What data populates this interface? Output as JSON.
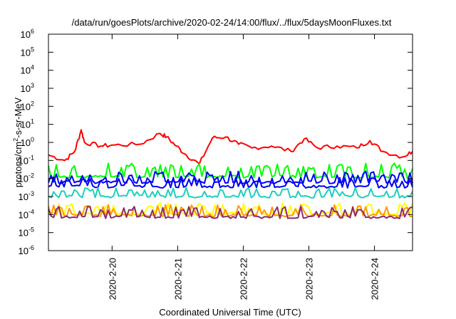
{
  "chart_data": {
    "type": "line",
    "title": "/data/run/goesPlots/archive/2020-02-24/14:00/flux/../flux/5daysMoonFluxes.txt",
    "xlabel": "Coordinated Universal Time (UTC)",
    "ylabel_parts": {
      "a": "protons/cm",
      "sup": "2",
      "b": "-s-sr-MeV"
    },
    "y_scale": "log",
    "ylim": [
      -6,
      6
    ],
    "y_ticks": [
      {
        "exp": -6,
        "base": "10",
        "sup": "-6"
      },
      {
        "exp": -5,
        "base": "10",
        "sup": "-5"
      },
      {
        "exp": -4,
        "base": "10",
        "sup": "-4"
      },
      {
        "exp": -3,
        "base": "10",
        "sup": "-3"
      },
      {
        "exp": -2,
        "base": "10",
        "sup": "-2"
      },
      {
        "exp": -1,
        "base": "10",
        "sup": "-1"
      },
      {
        "exp": 0,
        "base": "10",
        "sup": "0"
      },
      {
        "exp": 1,
        "base": "10",
        "sup": "1"
      },
      {
        "exp": 2,
        "base": "10",
        "sup": "2"
      },
      {
        "exp": 3,
        "base": "10",
        "sup": "3"
      },
      {
        "exp": 4,
        "base": "10",
        "sup": "4"
      },
      {
        "exp": 5,
        "base": "10",
        "sup": "5"
      },
      {
        "exp": 6,
        "base": "10",
        "sup": "6"
      }
    ],
    "x_range_days": [
      "2020-02-19 00:30",
      "2020-02-24 14:00"
    ],
    "x_ticks": [
      "2020-2-20",
      "2020-2-21",
      "2020-2-22",
      "2020-2-23",
      "2020-2-24"
    ],
    "grid": false,
    "legend": "none",
    "series": [
      {
        "color": "#ff0000",
        "x_day": [
          0.0,
          0.25,
          0.4,
          0.5,
          0.55,
          0.8,
          1.0,
          1.4,
          1.7,
          1.8,
          1.95,
          2.1,
          2.3,
          2.5,
          2.7,
          2.9,
          3.1,
          3.4,
          3.7,
          3.9,
          4.1,
          4.4,
          4.7,
          4.9,
          5.1,
          5.4,
          5.55
        ],
        "log10": [
          -0.7,
          -1.0,
          -0.5,
          0.7,
          0.0,
          -0.2,
          -0.15,
          -0.1,
          0.5,
          0.3,
          -0.2,
          -0.7,
          -1.2,
          0.25,
          0.3,
          -0.1,
          -0.3,
          -0.2,
          -0.5,
          0.2,
          -0.3,
          -0.2,
          -0.3,
          0.1,
          -0.5,
          -0.8,
          -0.5
        ]
      },
      {
        "color": "#00ff00",
        "base_log10": -1.9,
        "spikes_log10": -1.15
      },
      {
        "color": "#0000ff",
        "base_log10": -2.2,
        "spikes_log10": -1.6
      },
      {
        "color": "#0000ee",
        "base_log10": -2.45,
        "spikes_log10": -1.9
      },
      {
        "color": "#1ecfbd",
        "base_log10": -3.0,
        "spikes_log10": -2.5
      },
      {
        "color": "#ffff00",
        "base_log10": -3.95,
        "spikes_log10": -3.35
      },
      {
        "color": "#ff9900",
        "base_log10": -4.05,
        "spikes_log10": -3.45
      },
      {
        "color": "#8b2a72",
        "base_log10": -4.15,
        "spikes_log10": -3.55
      }
    ]
  }
}
